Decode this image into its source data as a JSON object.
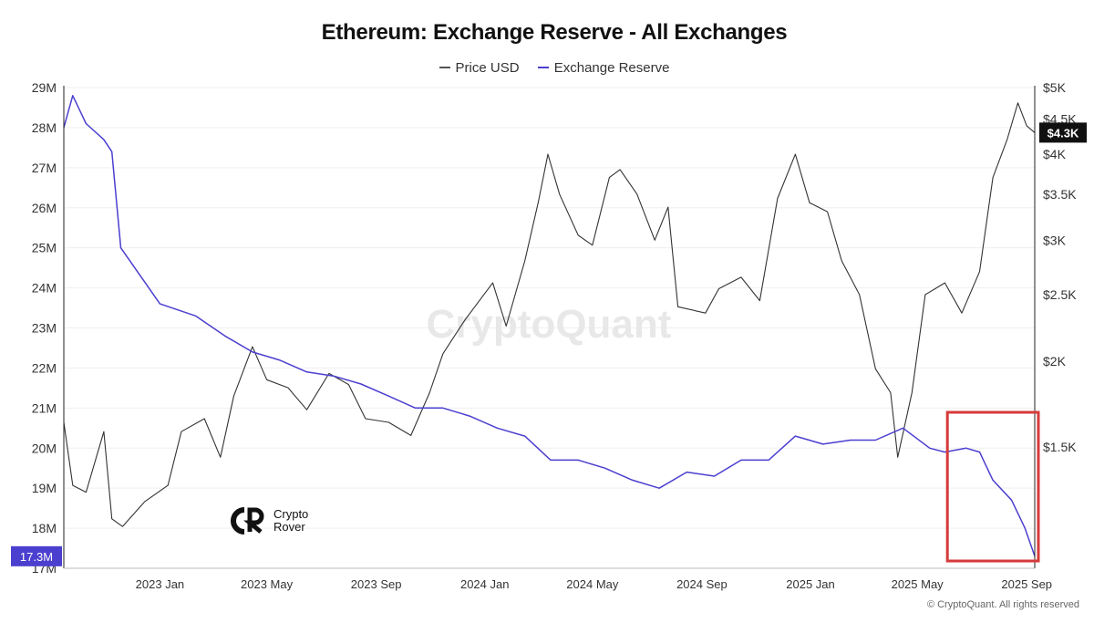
{
  "chart_data": {
    "type": "line",
    "title": "Ethereum: Exchange Reserve - All Exchanges",
    "xlabel": "",
    "ylabel_left": "",
    "ylabel_right": "",
    "x_ticks": [
      "2023 Jan",
      "2023 May",
      "2023 Sep",
      "2024 Jan",
      "2024 May",
      "2024 Sep",
      "2025 Jan",
      "2025 May",
      "2025 Sep"
    ],
    "x_range": [
      "2022-09-15",
      "2025-09-10"
    ],
    "left_axis": {
      "ticks": [
        "29M",
        "28M",
        "27M",
        "26M",
        "25M",
        "24M",
        "23M",
        "22M",
        "21M",
        "20M",
        "19M",
        "18M",
        "17M"
      ],
      "range": [
        17000000,
        29000000
      ]
    },
    "right_axis": {
      "scale": "log",
      "ticks": [
        "$5K",
        "$4.5K",
        "$4K",
        "$3.5K",
        "$3K",
        "$2.5K",
        "$2K",
        "$1.5K"
      ],
      "range": [
        1000,
        5000
      ]
    },
    "current_labels": {
      "reserve": "17.3M",
      "price": "$4.3K"
    },
    "grid": "horizontal",
    "legend_position": "top-center",
    "series": [
      {
        "name": "Price USD",
        "axis": "right",
        "color": "#333333",
        "points": [
          [
            "2022-09-15",
            1630
          ],
          [
            "2022-09-25",
            1320
          ],
          [
            "2022-10-10",
            1290
          ],
          [
            "2022-10-30",
            1580
          ],
          [
            "2022-11-08",
            1180
          ],
          [
            "2022-11-20",
            1150
          ],
          [
            "2022-12-15",
            1250
          ],
          [
            "2023-01-10",
            1320
          ],
          [
            "2023-01-25",
            1580
          ],
          [
            "2023-02-20",
            1650
          ],
          [
            "2023-03-10",
            1450
          ],
          [
            "2023-03-25",
            1780
          ],
          [
            "2023-04-15",
            2100
          ],
          [
            "2023-05-01",
            1880
          ],
          [
            "2023-05-25",
            1830
          ],
          [
            "2023-06-15",
            1700
          ],
          [
            "2023-07-10",
            1920
          ],
          [
            "2023-08-01",
            1850
          ],
          [
            "2023-08-20",
            1650
          ],
          [
            "2023-09-15",
            1630
          ],
          [
            "2023-10-10",
            1560
          ],
          [
            "2023-10-31",
            1800
          ],
          [
            "2023-11-15",
            2050
          ],
          [
            "2023-12-10",
            2300
          ],
          [
            "2024-01-10",
            2600
          ],
          [
            "2024-01-25",
            2250
          ],
          [
            "2024-02-15",
            2800
          ],
          [
            "2024-03-01",
            3400
          ],
          [
            "2024-03-12",
            4000
          ],
          [
            "2024-03-25",
            3500
          ],
          [
            "2024-04-15",
            3050
          ],
          [
            "2024-05-01",
            2950
          ],
          [
            "2024-05-20",
            3700
          ],
          [
            "2024-06-01",
            3800
          ],
          [
            "2024-06-20",
            3500
          ],
          [
            "2024-07-10",
            3000
          ],
          [
            "2024-07-25",
            3350
          ],
          [
            "2024-08-05",
            2400
          ],
          [
            "2024-09-05",
            2350
          ],
          [
            "2024-09-20",
            2550
          ],
          [
            "2024-10-15",
            2650
          ],
          [
            "2024-11-05",
            2450
          ],
          [
            "2024-11-25",
            3450
          ],
          [
            "2024-12-15",
            4000
          ],
          [
            "2024-12-31",
            3400
          ],
          [
            "2025-01-20",
            3300
          ],
          [
            "2025-02-05",
            2800
          ],
          [
            "2025-02-25",
            2500
          ],
          [
            "2025-03-15",
            1950
          ],
          [
            "2025-04-01",
            1800
          ],
          [
            "2025-04-09",
            1450
          ],
          [
            "2025-04-25",
            1800
          ],
          [
            "2025-05-10",
            2500
          ],
          [
            "2025-06-01",
            2600
          ],
          [
            "2025-06-20",
            2350
          ],
          [
            "2025-07-10",
            2700
          ],
          [
            "2025-07-25",
            3700
          ],
          [
            "2025-08-10",
            4200
          ],
          [
            "2025-08-22",
            4750
          ],
          [
            "2025-09-01",
            4400
          ],
          [
            "2025-09-10",
            4300
          ]
        ]
      },
      {
        "name": "Exchange Reserve",
        "axis": "left",
        "color": "#4b3fcf",
        "points": [
          [
            "2022-09-15",
            28.0
          ],
          [
            "2022-09-25",
            28.8
          ],
          [
            "2022-10-10",
            28.1
          ],
          [
            "2022-10-30",
            27.7
          ],
          [
            "2022-11-08",
            27.4
          ],
          [
            "2022-11-18",
            25.0
          ],
          [
            "2022-12-10",
            24.3
          ],
          [
            "2023-01-01",
            23.6
          ],
          [
            "2023-02-10",
            23.3
          ],
          [
            "2023-03-15",
            22.8
          ],
          [
            "2023-04-15",
            22.4
          ],
          [
            "2023-05-15",
            22.2
          ],
          [
            "2023-06-15",
            21.9
          ],
          [
            "2023-07-15",
            21.8
          ],
          [
            "2023-08-15",
            21.6
          ],
          [
            "2023-09-15",
            21.3
          ],
          [
            "2023-10-15",
            21.0
          ],
          [
            "2023-11-15",
            21.0
          ],
          [
            "2023-12-15",
            20.8
          ],
          [
            "2024-01-15",
            20.5
          ],
          [
            "2024-02-15",
            20.3
          ],
          [
            "2024-03-15",
            19.7
          ],
          [
            "2024-04-15",
            19.7
          ],
          [
            "2024-05-15",
            19.5
          ],
          [
            "2024-06-15",
            19.2
          ],
          [
            "2024-07-15",
            19.0
          ],
          [
            "2024-08-15",
            19.4
          ],
          [
            "2024-09-15",
            19.3
          ],
          [
            "2024-10-15",
            19.7
          ],
          [
            "2024-11-15",
            19.7
          ],
          [
            "2024-12-15",
            20.3
          ],
          [
            "2025-01-15",
            20.1
          ],
          [
            "2025-02-15",
            20.2
          ],
          [
            "2025-03-15",
            20.2
          ],
          [
            "2025-04-15",
            20.5
          ],
          [
            "2025-05-15",
            20.0
          ],
          [
            "2025-06-01",
            19.9
          ],
          [
            "2025-06-25",
            20.0
          ],
          [
            "2025-07-10",
            19.9
          ],
          [
            "2025-07-25",
            19.2
          ],
          [
            "2025-08-15",
            18.7
          ],
          [
            "2025-08-30",
            18.0
          ],
          [
            "2025-09-10",
            17.3
          ]
        ]
      }
    ],
    "annotations": [
      {
        "type": "highlight-box",
        "color": "#d63a3a",
        "x_range": [
          "2025-06-10",
          "2025-09-10"
        ]
      }
    ]
  },
  "watermark": "CryptoQuant",
  "brand": {
    "line1": "Crypto",
    "line2": "Rover"
  },
  "footer": "© CryptoQuant. All rights reserved"
}
